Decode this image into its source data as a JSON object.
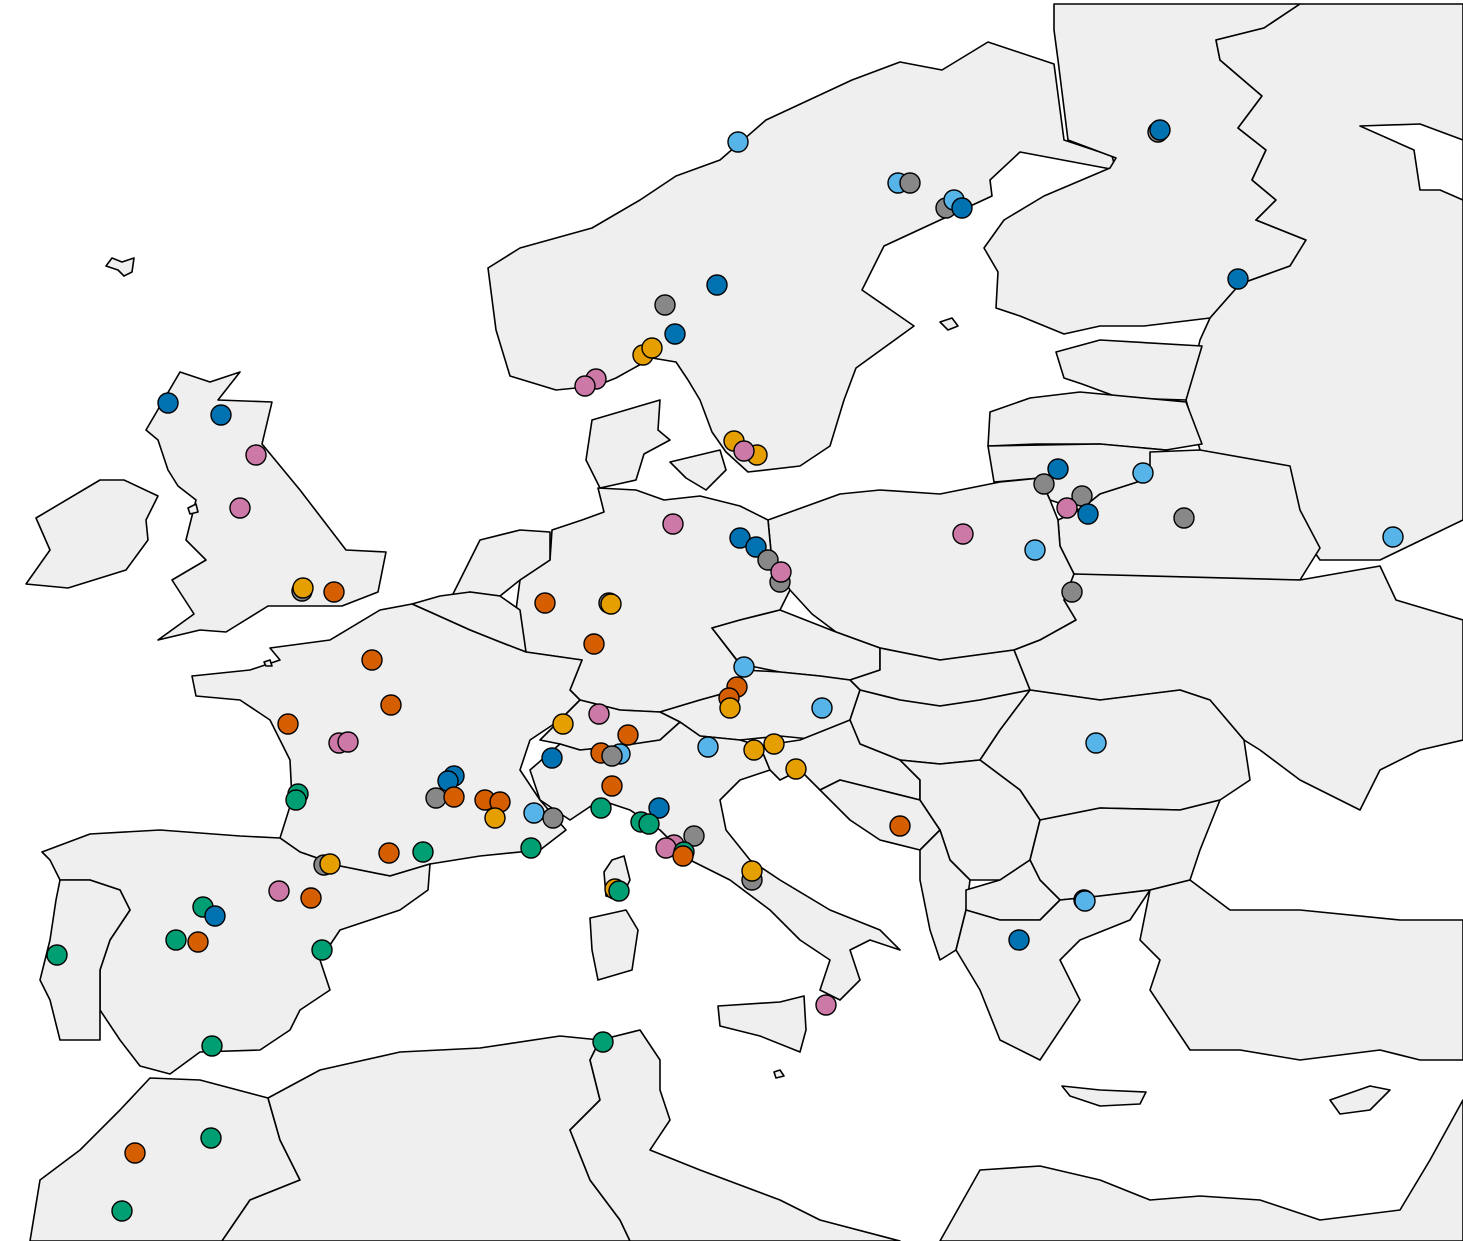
{
  "colors": {
    "land": "#efefef",
    "border": "#000000",
    "water": "#ffffff",
    "categories": {
      "orange": "#E69F00",
      "vermillion": "#D55E00",
      "green": "#009E73",
      "sky_blue": "#56B4E9",
      "dark_blue": "#0072B2",
      "pink": "#CC79A7",
      "gray": "#888888"
    }
  }
}
